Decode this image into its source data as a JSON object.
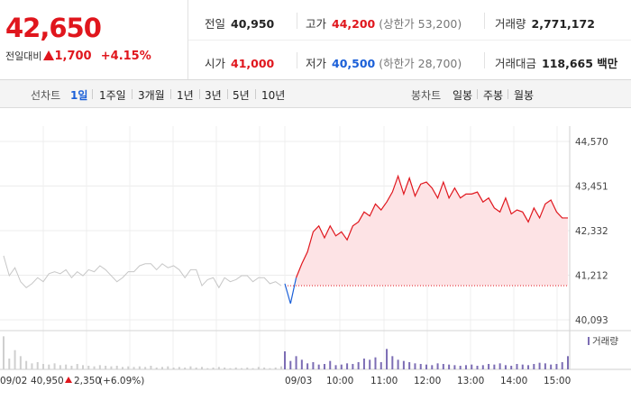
{
  "quote": {
    "price": "42,650",
    "change_label": "전일대비",
    "change_value": "1,700",
    "change_pct": "+4.15%"
  },
  "stats": {
    "prev_close_label": "전일",
    "prev_close": "40,950",
    "high_label": "고가",
    "high": "44,200",
    "upper_limit": "(상한가 53,200)",
    "volume_label": "거래량",
    "volume": "2,771,172",
    "open_label": "시가",
    "open": "41,000",
    "low_label": "저가",
    "low": "40,500",
    "lower_limit": "(하한가 28,700)",
    "amount_label": "거래대금",
    "amount": "118,665 백만"
  },
  "tabs": {
    "line_label": "선차트",
    "line": [
      "1일",
      "1주일",
      "3개월",
      "1년",
      "3년",
      "5년",
      "10년"
    ],
    "line_active": "1일",
    "candle_label": "봉차트",
    "candle": [
      "일봉",
      "주봉",
      "월봉"
    ]
  },
  "colors": {
    "up": "#e0161d",
    "down": "#1a5fd8",
    "prev_day_line": "#c7c7c7",
    "fill": "#fde3e5",
    "volume": "#7c6db4"
  },
  "chart_data": {
    "type": "line",
    "y_ticks": [
      "44,570",
      "43,451",
      "42,332",
      "41,212",
      "40,093"
    ],
    "y_tick_values": [
      44570,
      43451,
      42332,
      41212,
      40093
    ],
    "ylim": [
      40093,
      44570
    ],
    "x_ticks": [
      "09/03",
      "10:00",
      "11:00",
      "12:00",
      "13:00",
      "14:00",
      "15:00"
    ],
    "reference_price": 40950,
    "series": [
      {
        "key": "previous_day",
        "values": [
          41700,
          41200,
          41400,
          41050,
          40900,
          41000,
          41150,
          41050,
          41250,
          41300,
          41250,
          41350,
          41150,
          41300,
          41200,
          41350,
          41300,
          41450,
          41350,
          41200,
          41050,
          41150,
          41300,
          41300,
          41450,
          41500,
          41500,
          41350,
          41500,
          41400,
          41450,
          41350,
          41150,
          41350,
          41350,
          40950,
          41100,
          41150,
          40900,
          41150,
          41050,
          41100,
          41200,
          41200,
          41050,
          41150,
          41150,
          41000,
          41050,
          40950
        ]
      },
      {
        "key": "today",
        "values": [
          41000,
          40500,
          41150,
          41500,
          41800,
          42300,
          42450,
          42150,
          42450,
          42200,
          42300,
          42100,
          42450,
          42550,
          42800,
          42700,
          43000,
          42850,
          43050,
          43300,
          43700,
          43250,
          43650,
          43200,
          43500,
          43550,
          43400,
          43150,
          43550,
          43150,
          43400,
          43150,
          43250,
          43250,
          43300,
          43050,
          43150,
          42900,
          42800,
          43150,
          42750,
          42850,
          42800,
          42550,
          42900,
          42650,
          43000,
          43100,
          42800,
          42650,
          42650
        ]
      }
    ],
    "volume": {
      "label": "거래량",
      "previous_day": [
        55,
        18,
        32,
        22,
        14,
        10,
        12,
        9,
        8,
        10,
        7,
        8,
        6,
        9,
        7,
        6,
        5,
        7,
        6,
        5,
        6,
        4,
        5,
        4,
        5,
        4,
        6,
        3,
        4,
        5,
        3,
        4,
        3,
        5,
        3,
        4,
        2,
        3,
        4,
        3,
        2,
        3,
        2,
        3,
        2,
        4,
        3,
        2,
        3,
        5
      ],
      "today": [
        30,
        14,
        22,
        16,
        10,
        12,
        8,
        9,
        14,
        7,
        8,
        10,
        9,
        12,
        18,
        16,
        20,
        12,
        34,
        22,
        16,
        14,
        12,
        10,
        9,
        8,
        7,
        10,
        9,
        8,
        7,
        6,
        7,
        8,
        6,
        7,
        9,
        8,
        10,
        7,
        6,
        9,
        8,
        7,
        9,
        11,
        10,
        8,
        9,
        12,
        22
      ]
    },
    "prev_day_info": {
      "date": "09/02",
      "close": "40,950",
      "change": "2,350",
      "pct": "(+6.09%)"
    }
  }
}
